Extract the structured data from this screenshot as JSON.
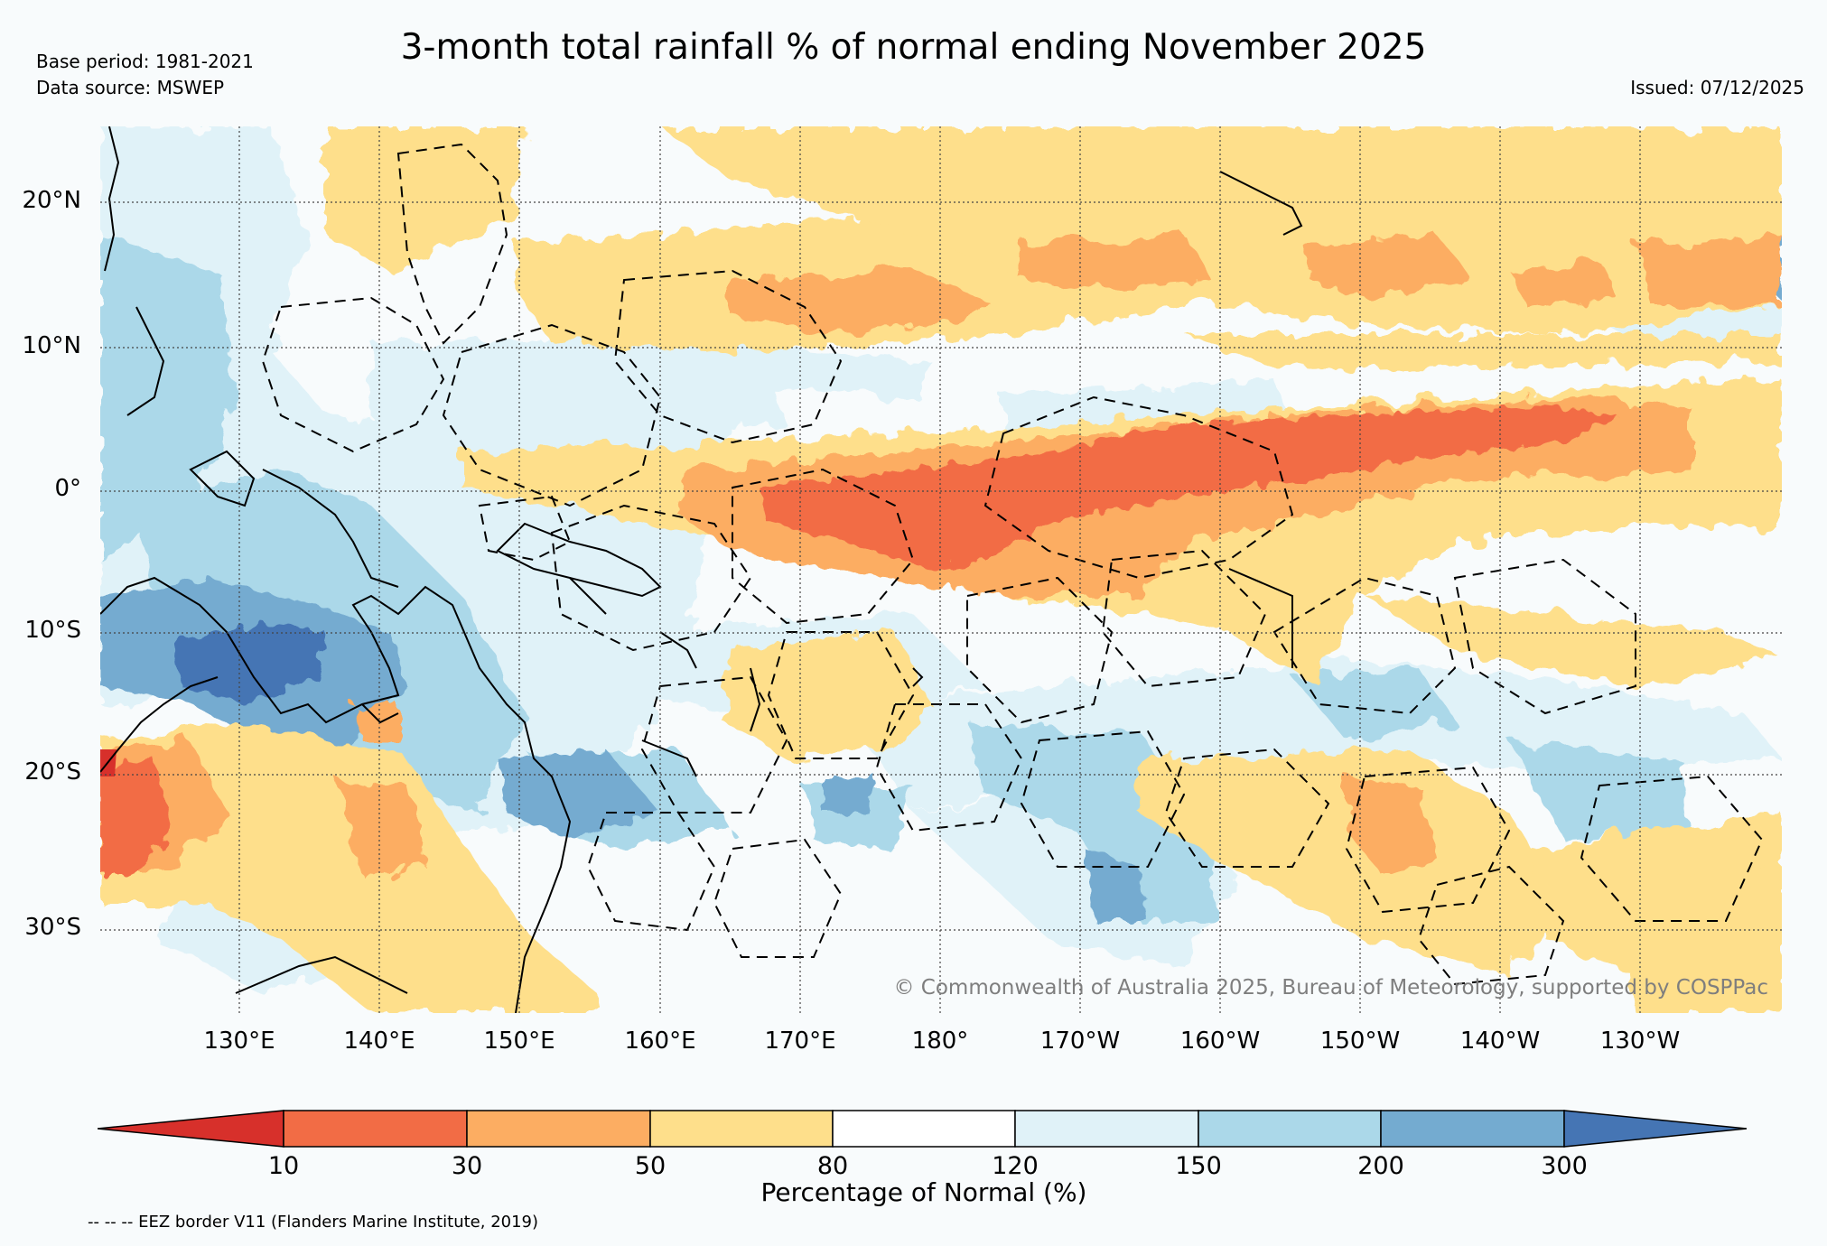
{
  "header": {
    "title": "3-month total rainfall % of normal ending November 2025",
    "base_period": "Base period: 1981-2021",
    "data_source": "Data source: MSWEP",
    "issued": "Issued: 07/12/2025"
  },
  "map": {
    "latitudes": [
      "20°N",
      "10°N",
      "0°",
      "10°S",
      "20°S",
      "30°S"
    ],
    "longitudes": [
      "130°E",
      "140°E",
      "150°E",
      "160°E",
      "170°E",
      "180°",
      "170°W",
      "160°W",
      "150°W",
      "140°W",
      "130°W"
    ],
    "copyright": "© Commonwealth of Australia 2025, Bureau of Meteorology, supported by COSPPac"
  },
  "colorbar": {
    "title": "Percentage of Normal (%)",
    "ticks": [
      "10",
      "30",
      "50",
      "80",
      "120",
      "150",
      "200",
      "300"
    ],
    "colors": [
      "#d7302b",
      "#f26c45",
      "#fcad62",
      "#fedf8b",
      "#ffffff",
      "#e0f2f8",
      "#abd8e9",
      "#74abd0",
      "#4575b4"
    ]
  },
  "footnote": "-- -- -- EEZ border V11 (Flanders Marine Institute, 2019)"
}
